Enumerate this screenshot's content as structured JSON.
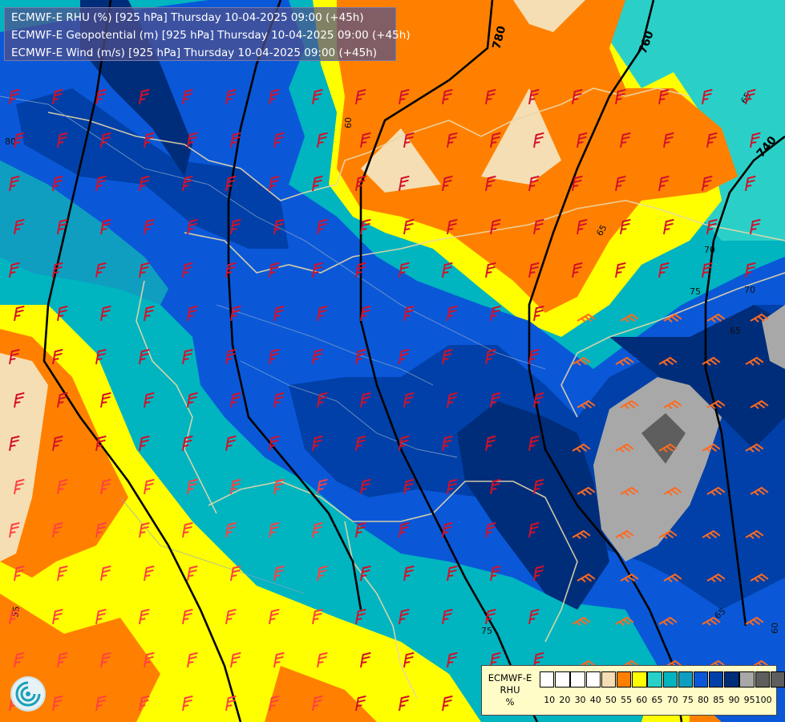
{
  "title_lines": [
    "ECMWF-E RHU (%) [925 hPa] Thursday 10-04-2025 09:00 (+45h)",
    "ECMWF-E Geopotential (m) [925 hPa] Thursday 10-04-2025 09:00 (+45h)",
    "ECMWF-E Wind (m/s) [925 hPa] Thursday 10-04-2025 09:00 (+45h)"
  ],
  "legend": {
    "title_lines": [
      "ECMWF-E",
      "RHU",
      "%"
    ],
    "ticks": [
      "10",
      "20",
      "30",
      "40",
      "50",
      "55",
      "60",
      "65",
      "70",
      "75",
      "80",
      "85",
      "90",
      "95",
      "100"
    ],
    "colors": [
      "#ffffff",
      "#ffffff",
      "#ffffff",
      "#ffffff",
      "#f5deb3",
      "#ff8000",
      "#ffff00",
      "#2ad0c8",
      "#00b4c0",
      "#109ec0",
      "#0a58d8",
      "#0040a8",
      "#002d7a",
      "#a8a8a8",
      "#5e5e5e",
      "#5e5e5e"
    ]
  },
  "geopotential_labels": [
    "780",
    "760",
    "740"
  ],
  "rhu_contour_labels": [
    "80",
    "60",
    "65",
    "65",
    "70",
    "75",
    "70",
    "65",
    "55",
    "75",
    "65",
    "60"
  ],
  "icons": [
    "ecmwf-logo-icon",
    "wind-barb-icon"
  ]
}
